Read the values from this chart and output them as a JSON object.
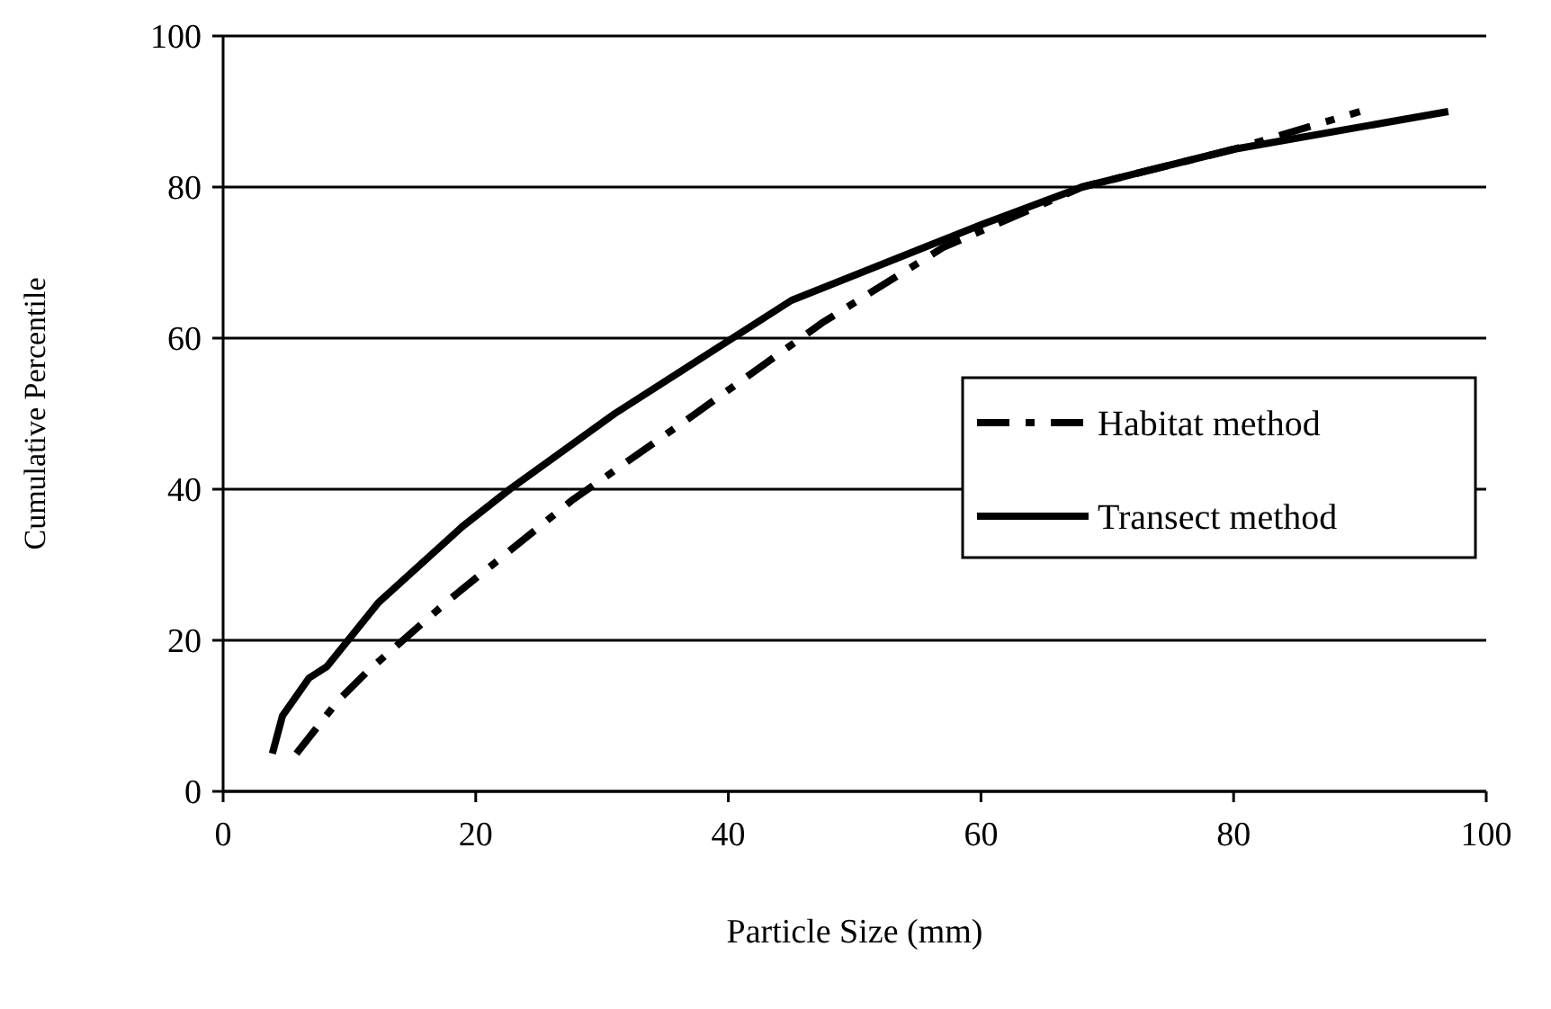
{
  "chart_data": {
    "type": "line",
    "xlabel": "Particle Size (mm)",
    "ylabel": "Cumulative Percentile",
    "xlim": [
      0,
      100
    ],
    "xticks": [
      0,
      20,
      40,
      60,
      80,
      100
    ],
    "ylim": [
      0,
      100
    ],
    "yticks": [
      0,
      20,
      40,
      60,
      80,
      100
    ],
    "grid": "y",
    "legend": "right",
    "series": [
      {
        "name": "Habitat method",
        "color": "#000000",
        "line_style": "dashed",
        "x": [
          5.8,
          9.1,
          11.5,
          18,
          27.6,
          37.4,
          47.4,
          57,
          68,
          80,
          90
        ],
        "values": [
          5,
          12,
          16,
          25.5,
          38.5,
          50,
          62,
          72,
          80,
          85,
          90
        ]
      },
      {
        "name": "Transect method",
        "color": "#000000",
        "line_style": "solid",
        "x": [
          3.9,
          4.7,
          6.8,
          8.2,
          12.3,
          18.9,
          22.7,
          31,
          45,
          60,
          68,
          80,
          97
        ],
        "values": [
          5,
          10,
          15,
          16.5,
          25,
          35,
          40,
          50,
          65,
          75,
          80,
          85,
          90
        ]
      }
    ]
  }
}
